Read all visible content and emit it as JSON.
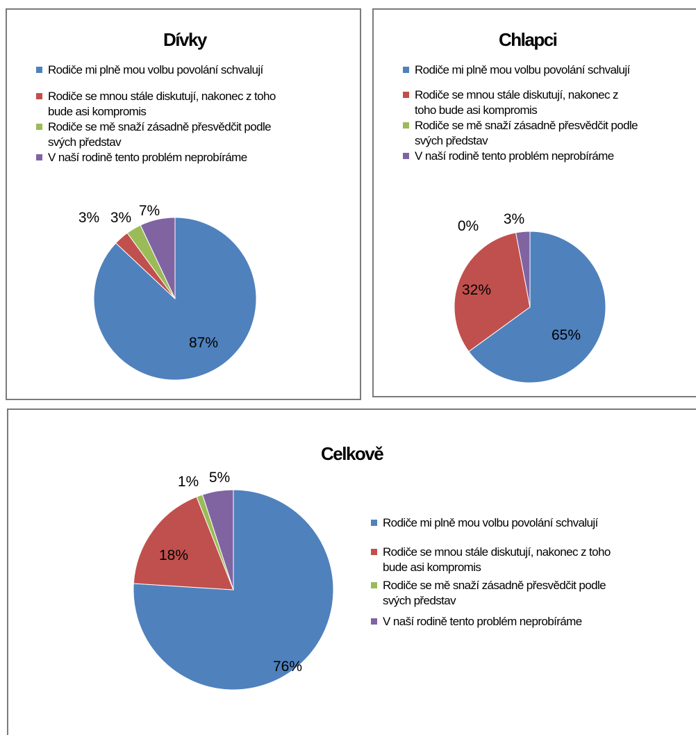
{
  "colors": {
    "blue": "#4f81bd",
    "red": "#c0504d",
    "green": "#9bbb59",
    "purple": "#8064a2"
  },
  "chart_data": [
    {
      "type": "pie",
      "title": "Dívky",
      "legend": "top",
      "categories": [
        "Rodiče mi plně mou volbu povolání schvalují",
        "Rodiče se mnou stále diskutují, nakonec z toho bude asi kompromis",
        "Rodiče se mě snaží zásadně přesvědčit podle svých představ",
        "V naší rodině tento problém neprobíráme"
      ],
      "values": [
        87,
        3,
        3,
        7
      ],
      "labels": [
        "87%",
        "3%",
        "3%",
        "7%"
      ]
    },
    {
      "type": "pie",
      "title": "Chlapci",
      "legend": "top",
      "categories": [
        "Rodiče mi plně mou volbu povolání schvalují",
        "Rodiče se mnou stále diskutují, nakonec z toho bude asi kompromis",
        "Rodiče se mě snaží zásadně přesvědčit podle svých představ",
        "V naší rodině tento problém neprobíráme"
      ],
      "values": [
        65,
        32,
        0,
        3
      ],
      "labels": [
        "65%",
        "32%",
        "0%",
        "3%"
      ]
    },
    {
      "type": "pie",
      "title": "Celkově",
      "legend": "right",
      "categories": [
        "Rodiče mi plně mou volbu povolání schvalují",
        "Rodiče se mnou stále diskutují, nakonec z toho bude asi kompromis",
        "Rodiče se mě snaží zásadně přesvědčit podle svých představ",
        "V naší rodině tento problém neprobíráme"
      ],
      "values": [
        76,
        18,
        1,
        5
      ],
      "labels": [
        "76%",
        "18%",
        "1%",
        "5%"
      ]
    }
  ],
  "legend_lines": {
    "divky": [
      [
        "Rodiče mi plně mou volbu povolání schvalují"
      ],
      [
        "Rodiče se mnou stále diskutují, nakonec z toho",
        "bude asi kompromis"
      ],
      [
        "Rodiče se mě snaží zásadně přesvědčit podle",
        "svých představ"
      ],
      [
        "V naší rodině tento problém neprobíráme"
      ]
    ],
    "chlapci": [
      [
        "Rodiče mi plně mou volbu povolání schvalují"
      ],
      [
        "Rodiče se mnou stále diskutují, nakonec z",
        "toho bude asi kompromis"
      ],
      [
        "Rodiče se mě snaží zásadně přesvědčit podle",
        "svých představ"
      ],
      [
        "V naší rodině tento problém neprobíráme"
      ]
    ],
    "celkove": [
      [
        "Rodiče mi plně mou volbu povolání schvalují"
      ],
      [
        "Rodiče se mnou stále diskutují, nakonec z toho",
        "bude asi kompromis"
      ],
      [
        "Rodiče se mě snaží zásadně přesvědčit podle",
        "svých představ"
      ],
      [
        "V naší rodině tento problém neprobíráme"
      ]
    ]
  }
}
